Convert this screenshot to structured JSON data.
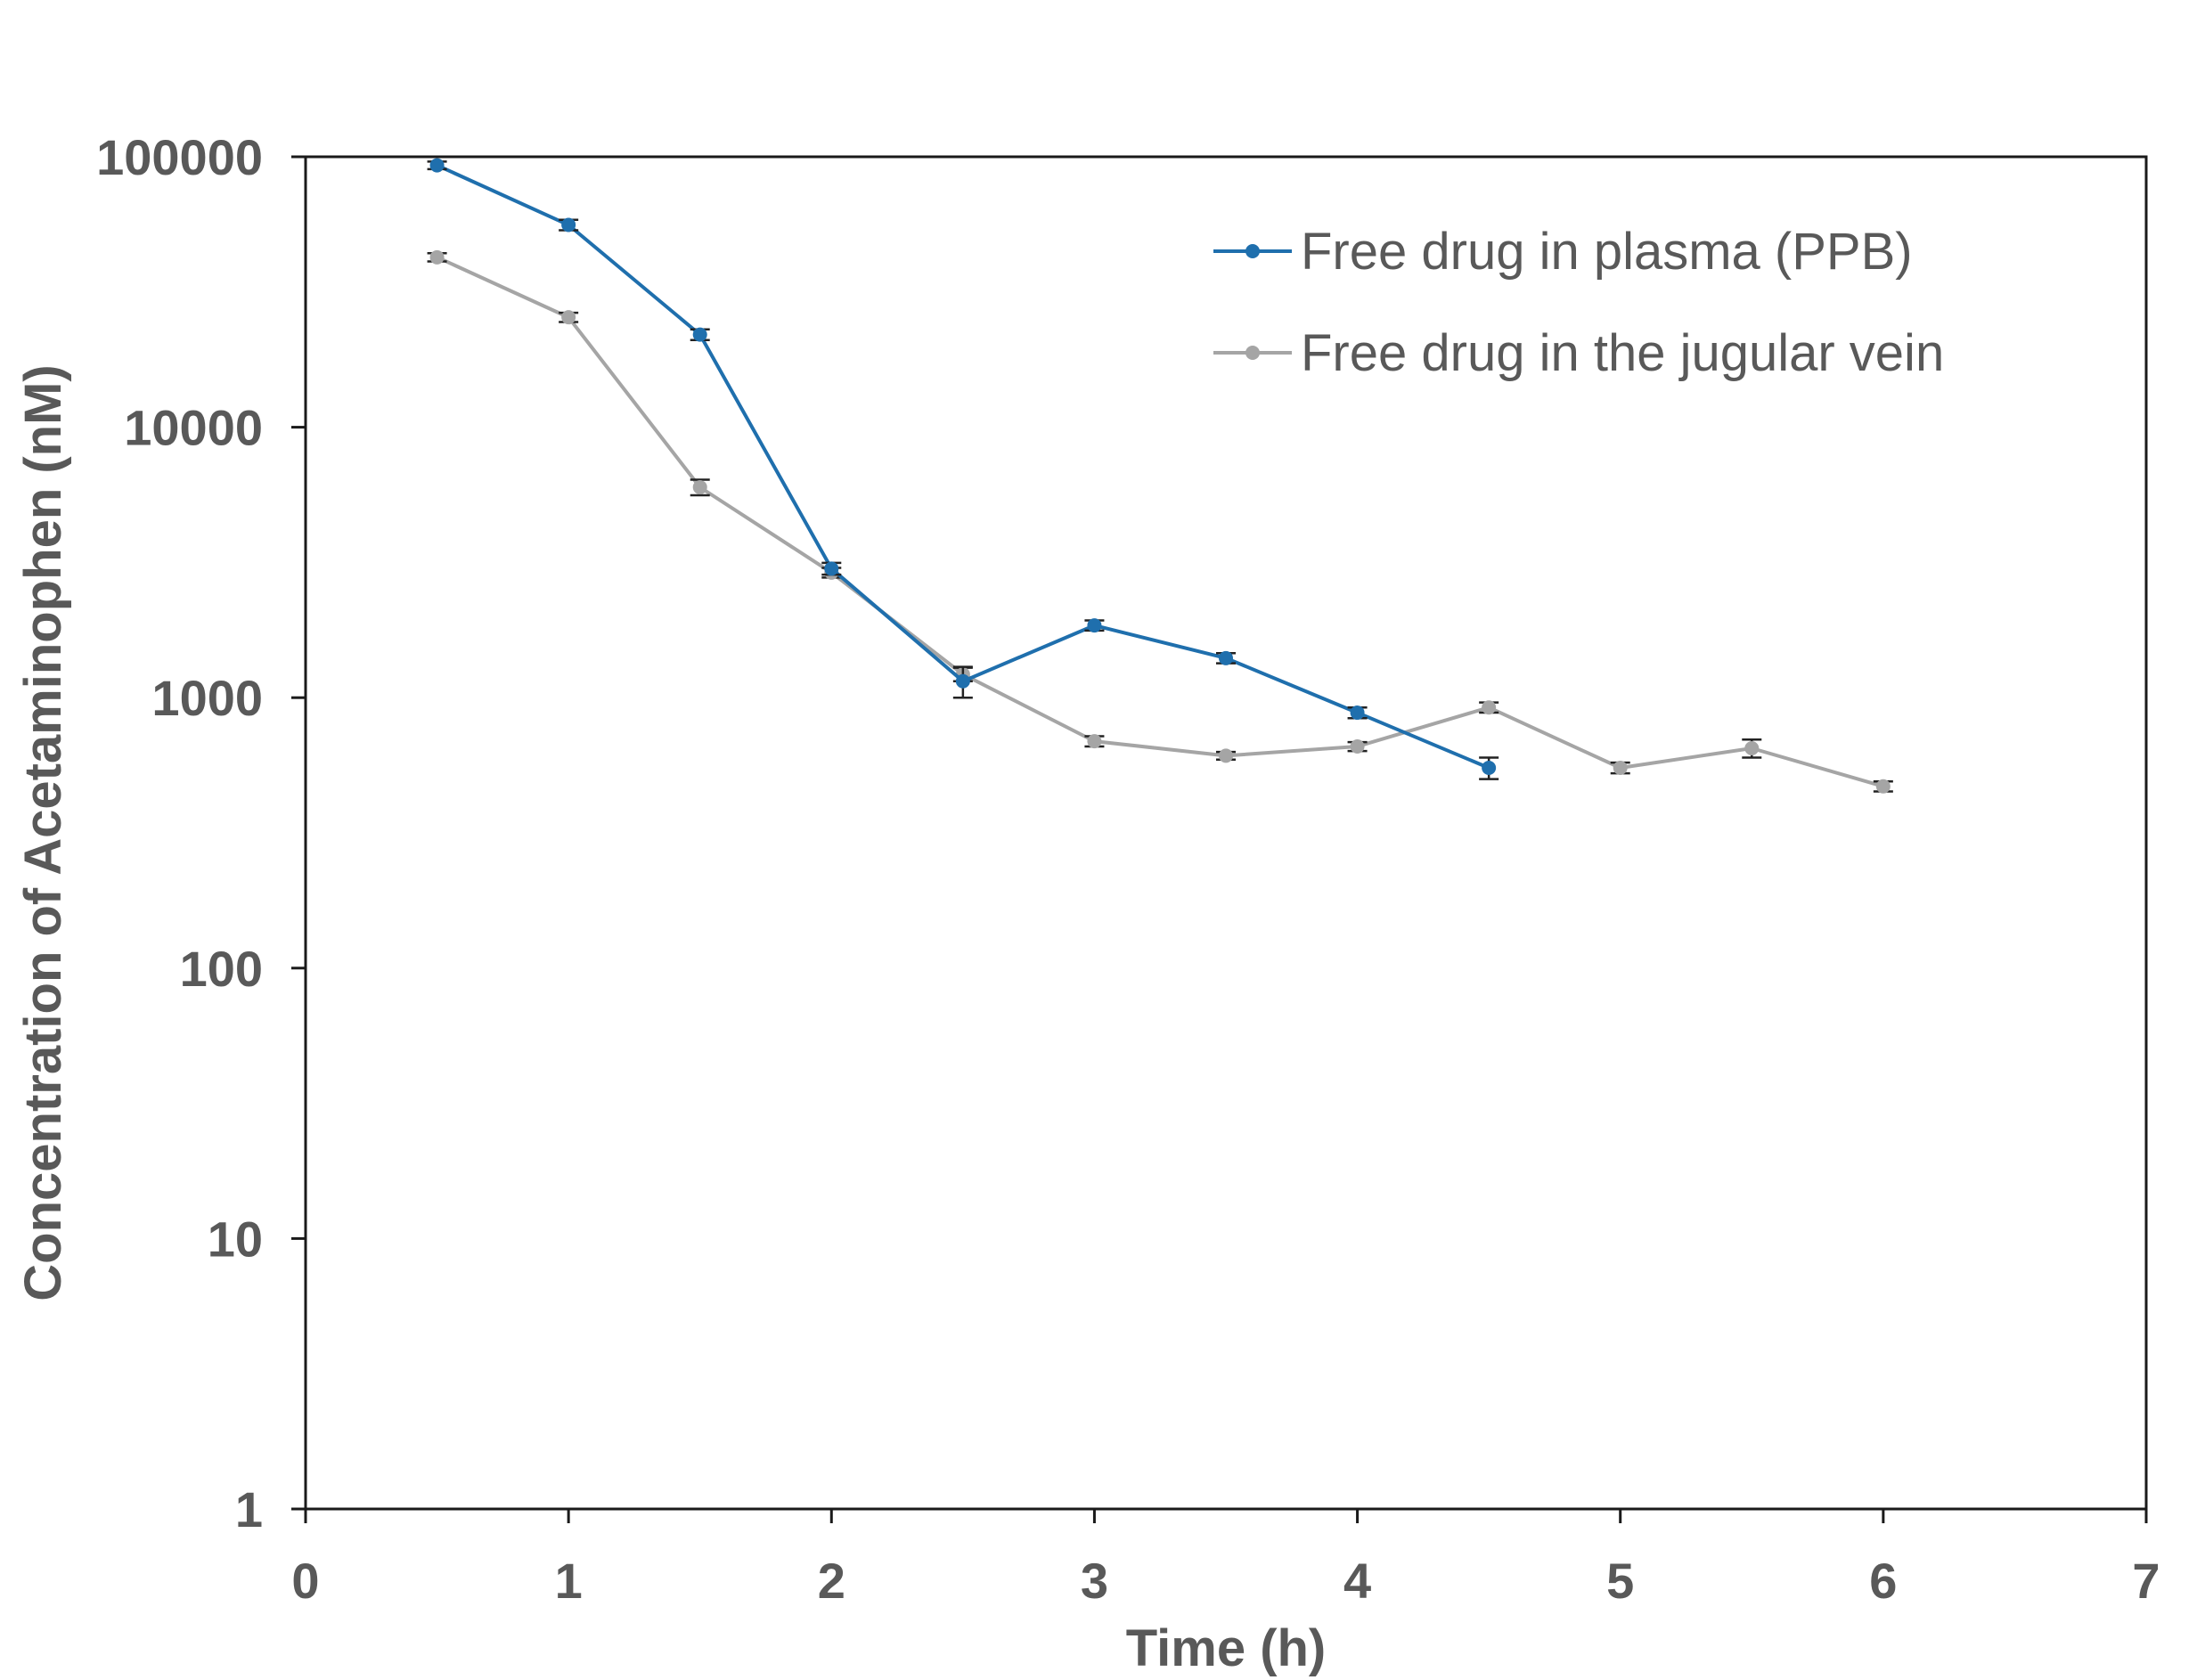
{
  "chart_data": {
    "type": "line",
    "xlabel": "Time (h)",
    "ylabel": "Concentration of Acetaminophen (nM)",
    "xlim": [
      0,
      7
    ],
    "ylim": [
      1,
      100000
    ],
    "yscale": "log",
    "x_ticks": [
      "0",
      "1",
      "2",
      "3",
      "4",
      "5",
      "6",
      "7"
    ],
    "y_ticks": [
      "1",
      "10",
      "100",
      "1000",
      "10000",
      "100000"
    ],
    "legend_position": "top-right",
    "grid": false,
    "series": [
      {
        "name": "Free drug in plasma (PPB)",
        "color": "#1f6fad",
        "x": [
          0.5,
          1,
          1.5,
          2,
          2.5,
          3,
          3.5,
          4,
          4.5
        ],
        "y": [
          93000,
          56000,
          22000,
          3000,
          1150,
          1850,
          1400,
          880,
          550
        ],
        "error": [
          3000,
          2500,
          1000,
          150,
          150,
          80,
          60,
          40,
          50
        ]
      },
      {
        "name": "Free drug in the jugular vein",
        "color": "#a5a5a5",
        "x": [
          0.5,
          1,
          1.5,
          2,
          2.5,
          3,
          3.5,
          4,
          4.5,
          5,
          5.5,
          6
        ],
        "y": [
          42500,
          25500,
          6000,
          2900,
          1220,
          690,
          610,
          660,
          920,
          550,
          650,
          470
        ],
        "error": [
          1500,
          1000,
          400,
          120,
          70,
          30,
          20,
          25,
          40,
          25,
          50,
          20
        ]
      }
    ]
  }
}
